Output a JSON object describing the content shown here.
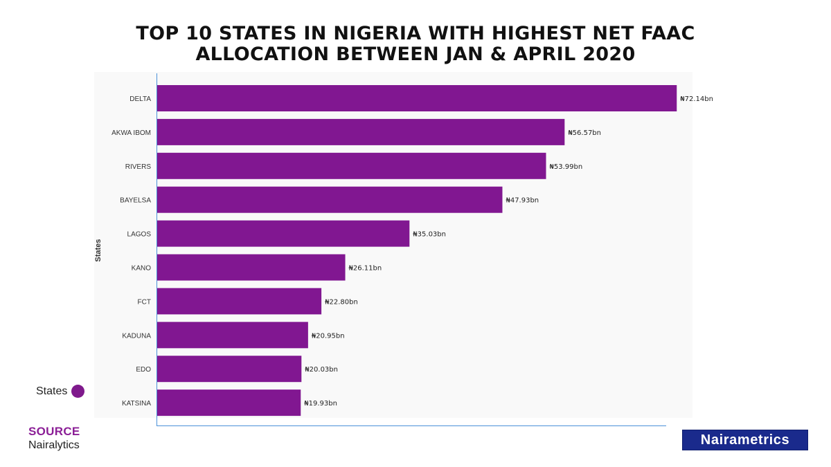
{
  "title_lines": [
    "TOP 10 STATES IN NIGERIA WITH HIGHEST NET FAAC",
    "ALLOCATION BETWEEN JAN & APRIL 2020"
  ],
  "legend": {
    "label": "States",
    "color": "#7f1a8c"
  },
  "source": {
    "label": "SOURCE",
    "name": "Nairalytics"
  },
  "logo": {
    "text": "Nairametrics",
    "background": "#1a2a8c"
  },
  "colors": {
    "bar": "#811791",
    "plot_bg": "#f9f9f9",
    "axis": "#4a90d9"
  },
  "chart_data": {
    "type": "bar",
    "orientation": "horizontal",
    "ylabel": "States",
    "categories": [
      "DELTA",
      "AKWA IBOM",
      "RIVERS",
      "BAYELSA",
      "LAGOS",
      "KANO",
      "FCT",
      "KADUNA",
      "EDO",
      "KATSINA"
    ],
    "values": [
      72.14,
      56.57,
      53.99,
      47.93,
      35.03,
      26.11,
      22.8,
      20.95,
      20.03,
      19.93
    ],
    "data_labels": [
      "₦72.14bn",
      "₦56.57bn",
      "₦53.99bn",
      "₦47.93bn",
      "₦35.03bn",
      "₦26.11bn",
      "₦22.80bn",
      "₦20.95bn",
      "₦20.03bn",
      "₦19.93bn"
    ],
    "unit": "₦ bn",
    "xlim": [
      0,
      75
    ]
  }
}
